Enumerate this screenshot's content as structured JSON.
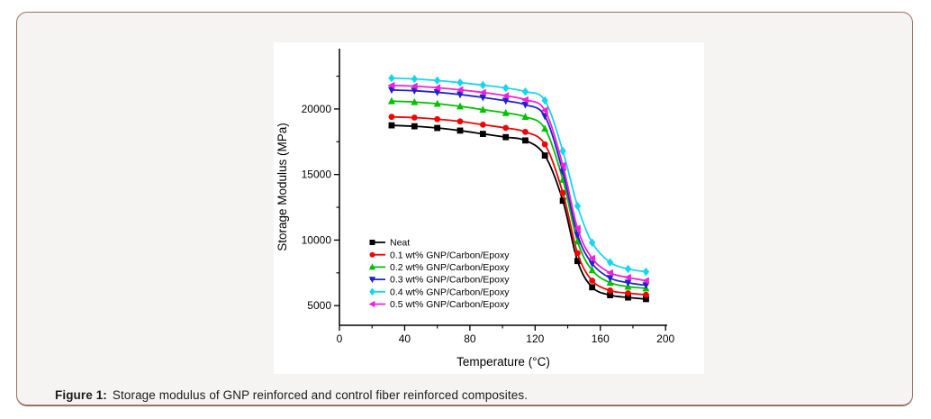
{
  "panel": {
    "fill": "#f5f4f2",
    "border_color": "#9b7164"
  },
  "caption": {
    "label": "Figure 1:",
    "text": "Storage modulus of GNP reinforced and control fiber reinforced composites."
  },
  "chart_data": {
    "type": "line",
    "title": "",
    "xlabel": "Temperature (°C)",
    "ylabel": "Storage Modulus (MPa)",
    "xlim": [
      0,
      201
    ],
    "ylim": [
      3500,
      24600
    ],
    "x_ticks": [
      0,
      40,
      80,
      120,
      160,
      200
    ],
    "x_minor_ticks": [
      20,
      60,
      100,
      140,
      180
    ],
    "y_ticks": [
      5000,
      10000,
      15000,
      20000
    ],
    "y_minor_ticks": [
      7500,
      12500,
      17500,
      22500
    ],
    "grid": false,
    "legend_position": "inside-lower-left",
    "x": [
      32,
      46,
      60,
      74,
      88,
      102,
      114,
      126,
      137,
      146,
      155,
      166,
      177,
      188
    ],
    "series": [
      {
        "name": "Neat",
        "color": "#000000",
        "marker": "square",
        "values": [
          18750,
          18680,
          18550,
          18350,
          18100,
          17850,
          17600,
          16450,
          13000,
          8400,
          6400,
          5800,
          5620,
          5500
        ]
      },
      {
        "name": "0.1 wt% GNP/Carbon/Epoxy",
        "color": "#f00505",
        "marker": "circle",
        "values": [
          19400,
          19340,
          19220,
          19050,
          18800,
          18550,
          18250,
          17300,
          13600,
          9000,
          6900,
          6150,
          5950,
          5830
        ]
      },
      {
        "name": "0.2 wt% GNP/Carbon/Epoxy",
        "color": "#00c000",
        "marker": "triangle-up",
        "values": [
          20600,
          20530,
          20400,
          20200,
          19950,
          19700,
          19400,
          18500,
          14600,
          9900,
          7700,
          6750,
          6450,
          6320
        ]
      },
      {
        "name": "0.3 wt% GNP/Carbon/Epoxy",
        "color": "#2222cc",
        "marker": "triangle-down",
        "values": [
          21450,
          21390,
          21270,
          21100,
          20880,
          20620,
          20320,
          19450,
          15200,
          10400,
          8200,
          7100,
          6750,
          6550
        ]
      },
      {
        "name": "0.4 wt% GNP/Carbon/Epoxy",
        "color": "#15d6ec",
        "marker": "diamond",
        "values": [
          22350,
          22290,
          22170,
          22010,
          21820,
          21600,
          21320,
          20650,
          16800,
          12600,
          9800,
          8300,
          7800,
          7580
        ]
      },
      {
        "name": "0.5 wt% GNP/Carbon/Epoxy",
        "color": "#ee22dd",
        "marker": "triangle-left",
        "values": [
          21800,
          21740,
          21620,
          21460,
          21260,
          21010,
          20700,
          19900,
          15700,
          10900,
          8600,
          7500,
          7150,
          6900
        ]
      }
    ]
  }
}
